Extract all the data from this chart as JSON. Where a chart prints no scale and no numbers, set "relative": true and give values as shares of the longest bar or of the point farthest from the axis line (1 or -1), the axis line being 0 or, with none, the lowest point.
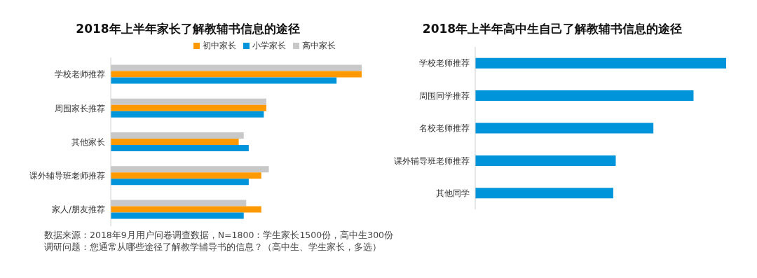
{
  "chart_data": [
    {
      "type": "bar",
      "orientation": "horizontal",
      "relative": true,
      "title": "2018年上半年家长了解教辅书信息的途径",
      "legend": "top",
      "categories": [
        "学校老师推荐",
        "周围家长推荐",
        "其他家长",
        "课外辅导班老师推荐",
        "家人/朋友推荐"
      ],
      "series": [
        {
          "name": "高中家长",
          "color": "#c8c8c8",
          "values": [
            1,
            0.62,
            0.53,
            0.63,
            0.54
          ]
        },
        {
          "name": "初中家长",
          "color": "#ff9900",
          "values": [
            1,
            0.62,
            0.51,
            0.6,
            0.6
          ]
        },
        {
          "name": "小学家长",
          "color": "#0095da",
          "values": [
            0.9,
            0.61,
            0.55,
            0.55,
            0.53
          ]
        }
      ],
      "annotations": [
        "数据来源：2018年9月用户问卷调查数据，N=1800：学生家长1500份，高中生300份",
        "调研问题：您通常从哪些途径了解教学辅导书的信息？（高中生、学生家长，多选）"
      ]
    },
    {
      "type": "bar",
      "orientation": "horizontal",
      "relative": true,
      "title": "2018年上半年高中生自己了解教辅书信息的途径",
      "categories": [
        "学校老师推荐",
        "周围同学推荐",
        "名校老师推荐",
        "课外辅导班老师推荐",
        "其他同学"
      ],
      "series": [
        {
          "color": "#0095da",
          "values": [
            1,
            0.87,
            0.71,
            0.56,
            0.55
          ]
        }
      ]
    }
  ]
}
